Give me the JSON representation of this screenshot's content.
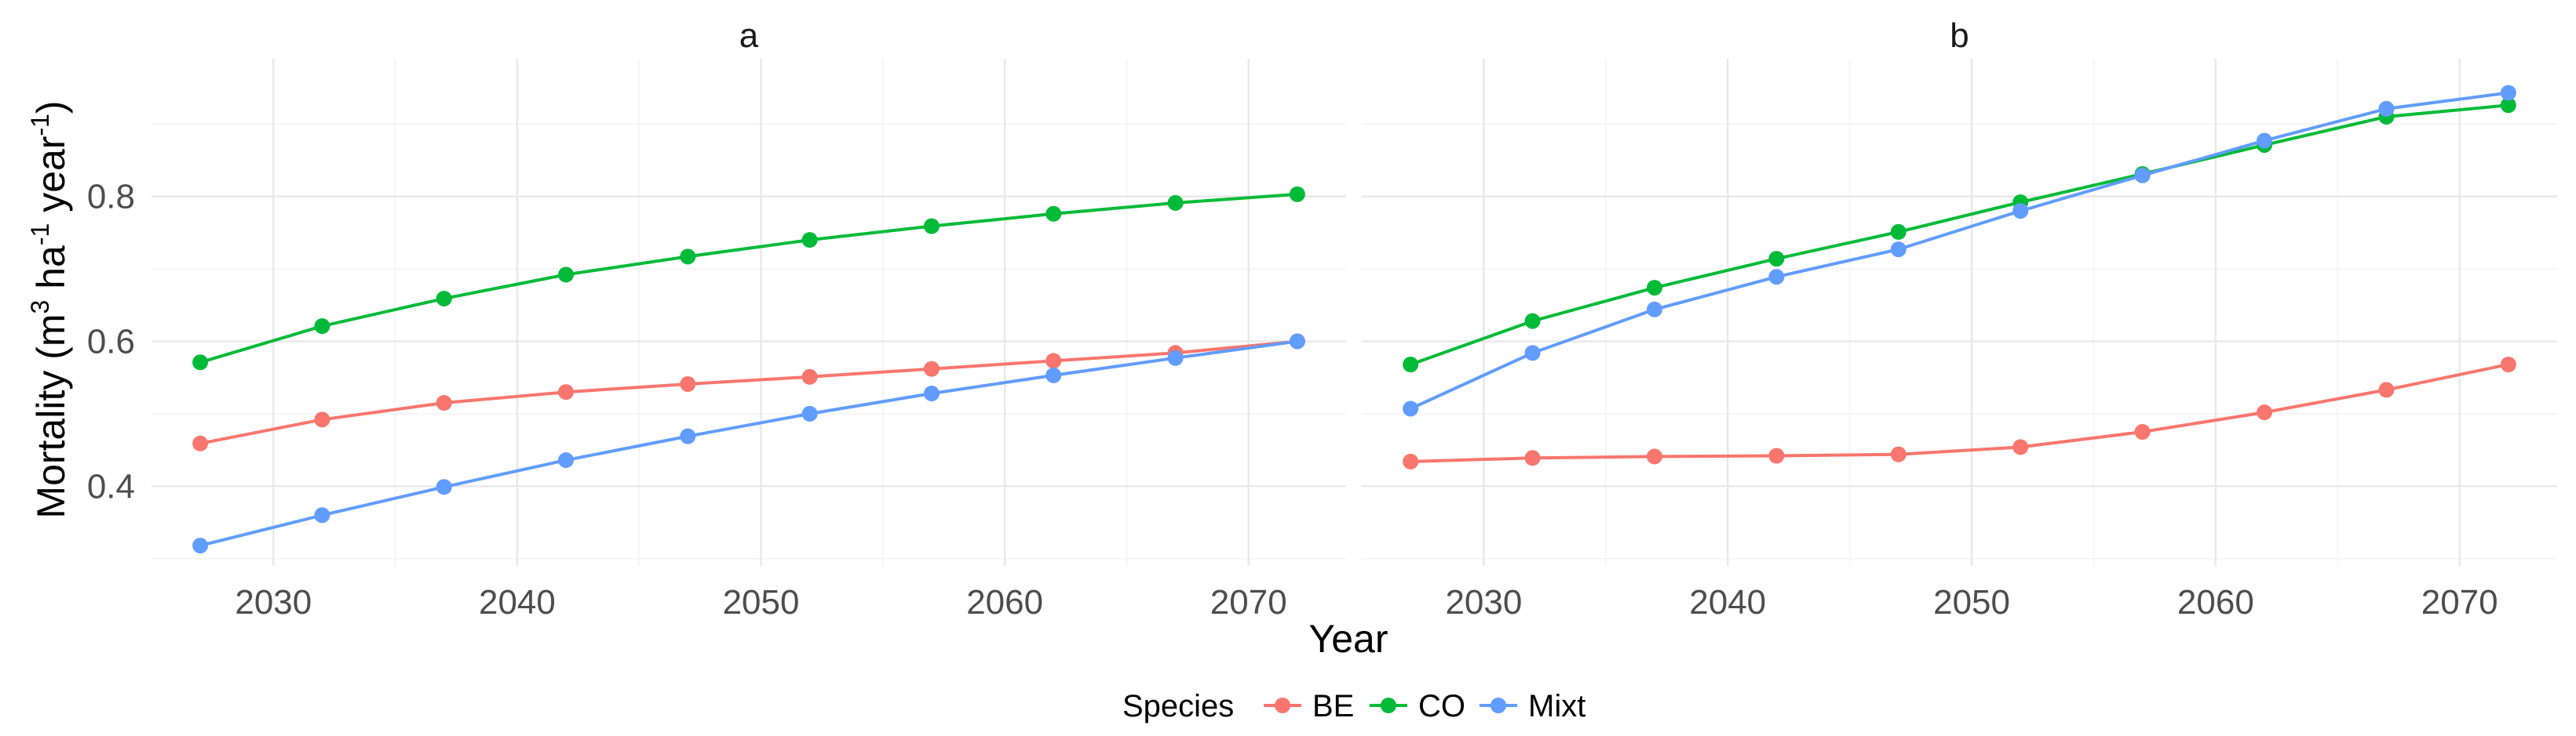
{
  "chart_data": {
    "type": "line",
    "xlabel": "Year",
    "ylabel": {
      "prefix": "Mortality (m",
      "sup1": "3",
      "mid1": " ha",
      "sup2": "-1",
      "mid2": " year",
      "sup3": "-1",
      "suffix": ")"
    },
    "xlim": [
      2025,
      2074
    ],
    "ylim": [
      0.29,
      0.99
    ],
    "x_ticks_major": [
      2030,
      2040,
      2050,
      2060,
      2070
    ],
    "x_ticks_major_labels": [
      "2030",
      "2040",
      "2050",
      "2060",
      "2070"
    ],
    "x_ticks_minor": [
      2035,
      2045,
      2055,
      2065
    ],
    "y_ticks_major": [
      0.4,
      0.6,
      0.8
    ],
    "y_ticks_major_labels": [
      "0.4",
      "0.6",
      "0.8"
    ],
    "y_ticks_minor": [
      0.3,
      0.5,
      0.7,
      0.9
    ],
    "legend": {
      "title": "Species",
      "position": "bottom",
      "entries": [
        {
          "name": "BE",
          "color": "#F8766D"
        },
        {
          "name": "CO",
          "color": "#00BA38"
        },
        {
          "name": "Mixt",
          "color": "#619CFF"
        }
      ]
    },
    "x": [
      2027,
      2032,
      2037,
      2042,
      2047,
      2052,
      2057,
      2062,
      2067,
      2072
    ],
    "panels": [
      {
        "title": "a",
        "series": [
          {
            "name": "BE",
            "color": "#F8766D",
            "values": [
              0.459,
              0.492,
              0.515,
              0.53,
              0.541,
              0.551,
              0.562,
              0.573,
              0.584,
              0.6
            ]
          },
          {
            "name": "CO",
            "color": "#00BA38",
            "values": [
              0.571,
              0.621,
              0.659,
              0.692,
              0.717,
              0.74,
              0.759,
              0.776,
              0.791,
              0.803
            ]
          },
          {
            "name": "Mixt",
            "color": "#619CFF",
            "values": [
              0.318,
              0.36,
              0.399,
              0.436,
              0.469,
              0.5,
              0.528,
              0.553,
              0.577,
              0.6
            ]
          }
        ]
      },
      {
        "title": "b",
        "series": [
          {
            "name": "BE",
            "color": "#F8766D",
            "values": [
              0.434,
              0.439,
              0.441,
              0.442,
              0.444,
              0.454,
              0.475,
              0.502,
              0.533,
              0.568
            ]
          },
          {
            "name": "CO",
            "color": "#00BA38",
            "values": [
              0.568,
              0.628,
              0.674,
              0.714,
              0.751,
              0.792,
              0.831,
              0.871,
              0.91,
              0.926
            ]
          },
          {
            "name": "Mixt",
            "color": "#619CFF",
            "values": [
              0.507,
              0.584,
              0.644,
              0.689,
              0.727,
              0.78,
              0.829,
              0.877,
              0.921,
              0.943
            ]
          }
        ]
      }
    ]
  }
}
